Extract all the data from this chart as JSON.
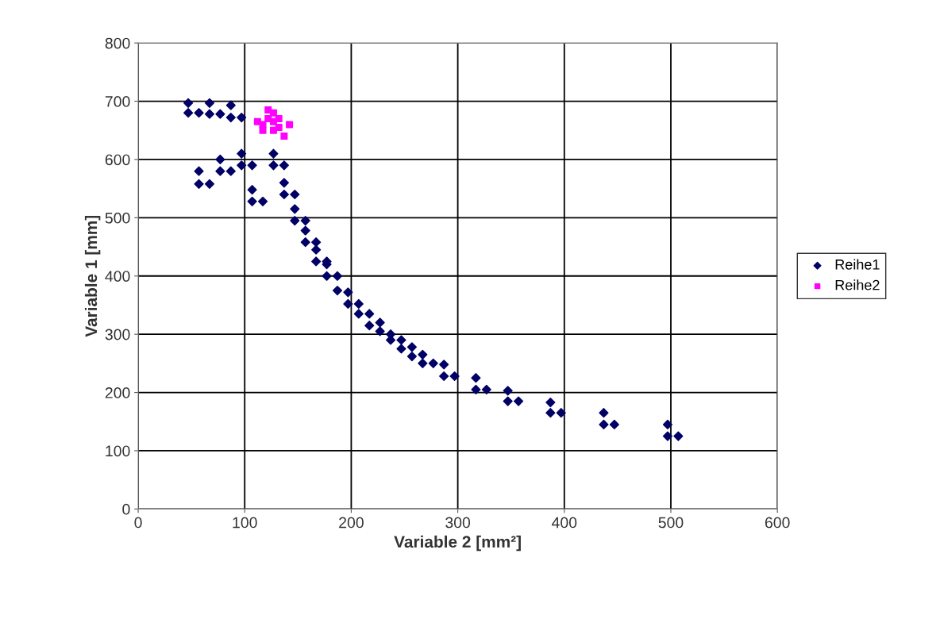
{
  "chart_data": {
    "type": "scatter",
    "xlabel": "Variable 2 [mm²]",
    "ylabel": "Variable 1 [mm]",
    "xlim": [
      0,
      600
    ],
    "xticks": [
      0,
      100,
      200,
      300,
      400,
      500,
      600
    ],
    "ylim": [
      0,
      800
    ],
    "yticks": [
      0,
      100,
      200,
      300,
      400,
      500,
      600,
      700,
      800
    ],
    "grid": true,
    "legend": "right",
    "series": [
      {
        "name": "Reihe1",
        "color": "#000066",
        "marker": "diamond",
        "x": [
          47,
          47,
          57,
          67,
          67,
          77,
          87,
          87,
          97,
          57,
          57,
          67,
          77,
          77,
          87,
          97,
          97,
          107,
          107,
          107,
          117,
          127,
          127,
          137,
          137,
          137,
          147,
          147,
          147,
          157,
          157,
          157,
          167,
          167,
          167,
          177,
          177,
          177,
          187,
          187,
          197,
          197,
          207,
          207,
          217,
          217,
          227,
          227,
          237,
          237,
          247,
          247,
          257,
          257,
          267,
          267,
          277,
          287,
          287,
          297,
          317,
          317,
          327,
          347,
          347,
          357,
          387,
          387,
          397,
          437,
          437,
          447,
          497,
          497,
          507
        ],
        "values": [
          697,
          680,
          680,
          697,
          678,
          678,
          693,
          672,
          672,
          580,
          558,
          558,
          600,
          580,
          580,
          610,
          590,
          590,
          548,
          528,
          528,
          610,
          590,
          590,
          560,
          540,
          540,
          515,
          495,
          495,
          478,
          458,
          458,
          445,
          425,
          425,
          420,
          400,
          400,
          375,
          372,
          352,
          352,
          335,
          335,
          315,
          320,
          305,
          300,
          290,
          290,
          275,
          278,
          262,
          265,
          250,
          250,
          248,
          228,
          228,
          225,
          205,
          205,
          203,
          185,
          185,
          183,
          165,
          165,
          165,
          145,
          145,
          145,
          125,
          125
        ]
      },
      {
        "name": "Reihe2",
        "color": "#ff00ff",
        "marker": "square",
        "x": [
          117,
          122,
          127,
          117,
          127,
          132,
          137,
          142,
          122,
          132,
          112,
          127
        ],
        "values": [
          660,
          685,
          680,
          650,
          650,
          670,
          640,
          660,
          670,
          655,
          665,
          665
        ]
      }
    ]
  }
}
